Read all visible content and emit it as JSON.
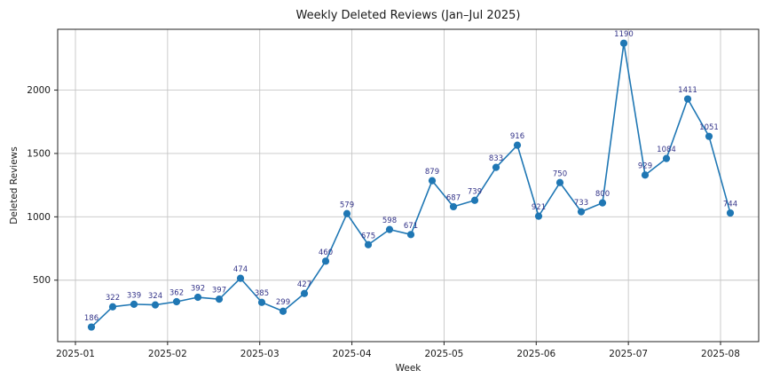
{
  "figure": {
    "title": "Weekly Deleted Reviews (Jan–Jul 2025)"
  },
  "chart_data": {
    "type": "line",
    "title": "Weekly Deleted Reviews (Jan–Jul 2025)",
    "xlabel": "Week",
    "ylabel": "Deleted Reviews",
    "x_tick_labels": [
      "2025-01",
      "2025-02",
      "2025-03",
      "2025-04",
      "2025-05",
      "2025-06",
      "2025-07",
      "2025-08"
    ],
    "y_ticks": [
      500,
      1000,
      1500,
      2000
    ],
    "ylim": [
      15,
      2480
    ],
    "grid": true,
    "legend": false,
    "line_color": "#1f77b4",
    "marker": "circle",
    "grid_color": "#c6c6c6",
    "spine_color": "#222222",
    "annotation_color": "#333388",
    "annotations": [
      "186",
      "322",
      "339",
      "324",
      "362",
      "392",
      "397",
      "474",
      "385",
      "299",
      "427",
      "460",
      "579",
      "675",
      "598",
      "671",
      "879",
      "687",
      "739",
      "833",
      "916",
      "921",
      "750",
      "733",
      "800",
      "1190",
      "929",
      "1084",
      "1411",
      "1051",
      "744"
    ],
    "values": [
      130,
      290,
      310,
      305,
      330,
      365,
      350,
      515,
      325,
      255,
      395,
      650,
      1025,
      780,
      900,
      860,
      1285,
      1080,
      1130,
      1390,
      1565,
      1005,
      1270,
      1040,
      1110,
      2370,
      1330,
      1460,
      1930,
      1635,
      1030
    ]
  }
}
